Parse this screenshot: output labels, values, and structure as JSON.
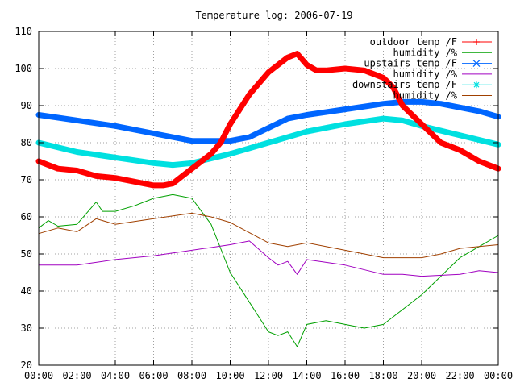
{
  "chart_data": {
    "type": "line",
    "title": "Temperature log: 2006-07-19",
    "xlabel": "",
    "ylabel": "",
    "ylim": [
      20,
      110
    ],
    "xlim_hours": [
      0,
      24
    ],
    "yticks": [
      "20",
      "30",
      "40",
      "50",
      "60",
      "70",
      "80",
      "90",
      "100",
      "110"
    ],
    "xticks": [
      "00:00",
      "02:00",
      "04:00",
      "06:00",
      "08:00",
      "10:00",
      "12:00",
      "14:00",
      "16:00",
      "18:00",
      "20:00",
      "22:00",
      "00:00"
    ],
    "grid": true,
    "legend_position": "top-right",
    "series": [
      {
        "name": "outdoor temp /F",
        "color": "#ff0000",
        "marker": "plus",
        "x": [
          "00:00",
          "01:00",
          "02:00",
          "03:00",
          "04:00",
          "05:00",
          "06:00",
          "06:30",
          "07:00",
          "07:30",
          "08:00",
          "09:00",
          "09:30",
          "10:00",
          "11:00",
          "12:00",
          "12:30",
          "13:00",
          "13:30",
          "14:00",
          "14:30",
          "15:00",
          "16:00",
          "17:00",
          "18:00",
          "18:30",
          "19:00",
          "20:00",
          "21:00",
          "22:00",
          "23:00",
          "24:00"
        ],
        "y": [
          75,
          73,
          72.5,
          71,
          70.5,
          69.5,
          68.5,
          68.5,
          69,
          71,
          73,
          77,
          80,
          85,
          93,
          99,
          101,
          103,
          104,
          101,
          99.5,
          99.5,
          100,
          99.5,
          97.5,
          95,
          90,
          85,
          80,
          78,
          75,
          73
        ]
      },
      {
        "name": "humidity /%",
        "color": "#00a000",
        "marker": "none",
        "x": [
          "00:00",
          "00:30",
          "01:00",
          "02:00",
          "02:30",
          "03:00",
          "03:20",
          "04:00",
          "05:00",
          "06:00",
          "07:00",
          "08:00",
          "09:00",
          "10:00",
          "11:00",
          "12:00",
          "12:30",
          "13:00",
          "13:30",
          "14:00",
          "15:00",
          "16:00",
          "17:00",
          "18:00",
          "19:00",
          "20:00",
          "21:00",
          "22:00",
          "23:00",
          "24:00"
        ],
        "y": [
          57,
          59,
          57.5,
          58,
          61,
          64,
          61.5,
          61.5,
          63,
          65,
          66,
          65,
          58,
          45,
          37,
          29,
          28,
          29,
          25,
          31,
          32,
          31,
          30,
          31,
          35,
          39,
          44,
          49,
          52,
          55
        ]
      },
      {
        "name": "upstairs temp /F",
        "color": "#0066ff",
        "marker": "cross",
        "x": [
          "00:00",
          "02:00",
          "04:00",
          "06:00",
          "08:00",
          "10:00",
          "11:00",
          "12:00",
          "13:00",
          "14:00",
          "16:00",
          "18:00",
          "19:00",
          "20:00",
          "21:00",
          "22:00",
          "23:00",
          "24:00"
        ],
        "y": [
          87.5,
          86,
          84.5,
          82.5,
          80.5,
          80.5,
          81.5,
          84,
          86.5,
          87.5,
          89,
          90.5,
          91,
          91,
          90.5,
          89.5,
          88.5,
          87
        ]
      },
      {
        "name": "humidity /%",
        "color": "#a000c0",
        "marker": "none",
        "x": [
          "00:00",
          "02:00",
          "04:00",
          "06:00",
          "08:00",
          "10:00",
          "11:00",
          "12:00",
          "12:30",
          "13:00",
          "13:30",
          "14:00",
          "16:00",
          "18:00",
          "19:00",
          "20:00",
          "22:00",
          "23:00",
          "24:00"
        ],
        "y": [
          47,
          47,
          48.5,
          49.5,
          51,
          52.5,
          53.5,
          49,
          47,
          48,
          44.5,
          48.5,
          47,
          44.5,
          44.5,
          44,
          44.5,
          45.5,
          45
        ]
      },
      {
        "name": "downstairs temp /F",
        "color": "#00e0e0",
        "marker": "star",
        "x": [
          "00:00",
          "02:00",
          "04:00",
          "06:00",
          "07:00",
          "08:00",
          "10:00",
          "12:00",
          "14:00",
          "16:00",
          "18:00",
          "19:00",
          "20:00",
          "22:00",
          "24:00"
        ],
        "y": [
          80,
          77.5,
          76,
          74.5,
          74,
          74.5,
          77,
          80,
          83,
          85,
          86.5,
          86,
          84.5,
          82,
          79.5
        ]
      },
      {
        "name": "humidity /%",
        "color": "#a04000",
        "marker": "none",
        "x": [
          "00:00",
          "01:00",
          "02:00",
          "03:00",
          "04:00",
          "06:00",
          "08:00",
          "09:00",
          "10:00",
          "12:00",
          "13:00",
          "14:00",
          "16:00",
          "18:00",
          "20:00",
          "21:00",
          "22:00",
          "23:00",
          "24:00"
        ],
        "y": [
          55.5,
          57,
          56,
          59.5,
          58,
          59.5,
          61,
          60,
          58.5,
          53,
          52,
          53,
          51,
          49,
          49,
          50,
          51.5,
          52,
          52.5
        ]
      }
    ]
  }
}
